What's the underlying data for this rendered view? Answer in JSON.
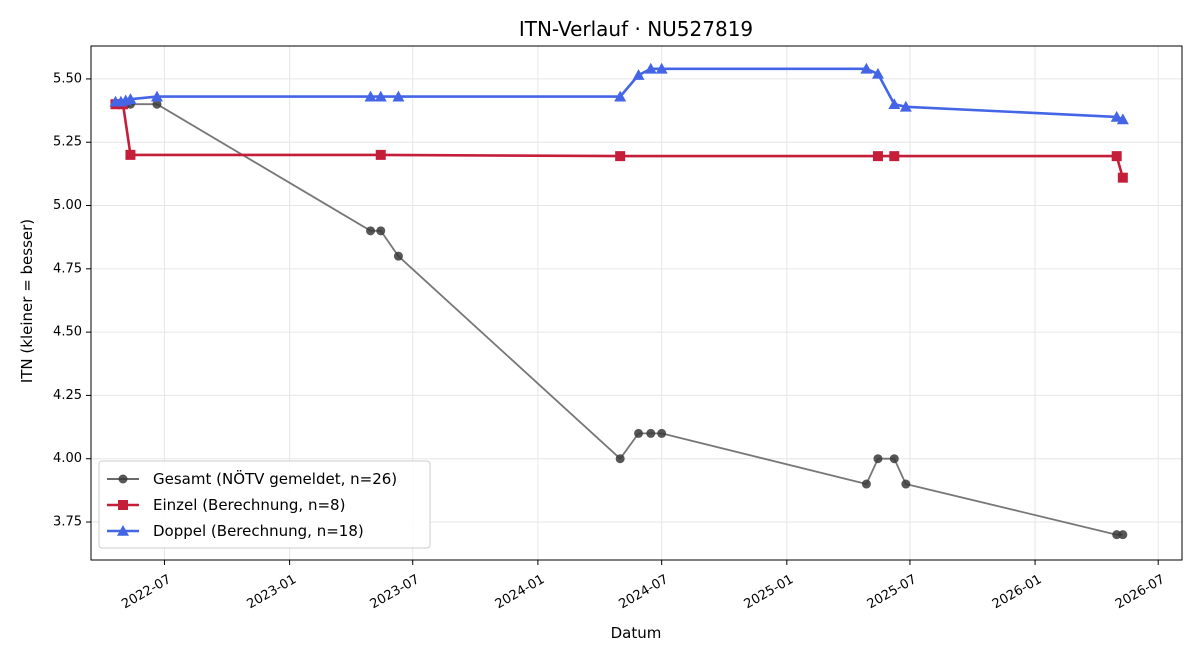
{
  "chart_data": {
    "type": "line",
    "title": "ITN-Verlauf · NU527819",
    "xlabel": "Datum",
    "ylabel": "ITN  (kleiner = besser)",
    "x_axis_type": "date",
    "xlim": [
      "2022-03-15",
      "2026-08-05"
    ],
    "ylim": [
      3.6,
      5.63
    ],
    "x_ticks": [
      "2022-07-01",
      "2023-01-01",
      "2023-07-01",
      "2024-01-01",
      "2024-07-01",
      "2025-01-01",
      "2025-07-01",
      "2026-01-01",
      "2026-07-01"
    ],
    "x_tick_labels": [
      "2022-07",
      "2023-01",
      "2023-07",
      "2024-01",
      "2024-07",
      "2025-01",
      "2025-07",
      "2026-01",
      "2026-07"
    ],
    "y_ticks": [
      3.75,
      4.0,
      4.25,
      4.5,
      4.75,
      5.0,
      5.25,
      5.5
    ],
    "y_tick_labels": [
      "3.75",
      "4.00",
      "4.25",
      "4.50",
      "4.75",
      "5.00",
      "5.25",
      "5.50"
    ],
    "grid": true,
    "legend_position": "lower-left",
    "series": [
      {
        "name": "Gesamt (NÖTV gemeldet, n=26)",
        "color": "#555555",
        "marker": "circle",
        "points": [
          {
            "x": "2022-04-20",
            "y": 5.4
          },
          {
            "x": "2022-04-25",
            "y": 5.4
          },
          {
            "x": "2022-04-30",
            "y": 5.4
          },
          {
            "x": "2022-05-05",
            "y": 5.4
          },
          {
            "x": "2022-05-12",
            "y": 5.4
          },
          {
            "x": "2022-06-20",
            "y": 5.4
          },
          {
            "x": "2023-04-30",
            "y": 4.9
          },
          {
            "x": "2023-05-15",
            "y": 4.9
          },
          {
            "x": "2023-06-10",
            "y": 4.8
          },
          {
            "x": "2024-05-01",
            "y": 4.0
          },
          {
            "x": "2024-05-28",
            "y": 4.1
          },
          {
            "x": "2024-06-15",
            "y": 4.1
          },
          {
            "x": "2024-07-01",
            "y": 4.1
          },
          {
            "x": "2025-04-28",
            "y": 3.9
          },
          {
            "x": "2025-05-15",
            "y": 4.0
          },
          {
            "x": "2025-06-08",
            "y": 4.0
          },
          {
            "x": "2025-06-25",
            "y": 3.9
          },
          {
            "x": "2026-05-01",
            "y": 3.7
          },
          {
            "x": "2026-05-10",
            "y": 3.7
          }
        ]
      },
      {
        "name": "Einzel (Berechnung, n=8)",
        "color": "#c41e3a",
        "marker": "square",
        "points": [
          {
            "x": "2022-04-20",
            "y": 5.4
          },
          {
            "x": "2022-05-01",
            "y": 5.4
          },
          {
            "x": "2022-05-12",
            "y": 5.2
          },
          {
            "x": "2023-05-15",
            "y": 5.2
          },
          {
            "x": "2024-05-01",
            "y": 5.195
          },
          {
            "x": "2025-05-15",
            "y": 5.195
          },
          {
            "x": "2025-06-08",
            "y": 5.195
          },
          {
            "x": "2026-05-01",
            "y": 5.195
          },
          {
            "x": "2026-05-10",
            "y": 5.11
          }
        ]
      },
      {
        "name": "Doppel (Berechnung, n=18)",
        "color": "#4466e6",
        "marker": "triangle",
        "points": [
          {
            "x": "2022-04-20",
            "y": 5.41
          },
          {
            "x": "2022-04-28",
            "y": 5.41
          },
          {
            "x": "2022-05-05",
            "y": 5.415
          },
          {
            "x": "2022-05-12",
            "y": 5.42
          },
          {
            "x": "2022-06-20",
            "y": 5.43
          },
          {
            "x": "2023-04-30",
            "y": 5.43
          },
          {
            "x": "2023-05-15",
            "y": 5.43
          },
          {
            "x": "2023-06-10",
            "y": 5.43
          },
          {
            "x": "2024-05-01",
            "y": 5.43
          },
          {
            "x": "2024-05-28",
            "y": 5.515
          },
          {
            "x": "2024-06-15",
            "y": 5.54
          },
          {
            "x": "2024-07-01",
            "y": 5.54
          },
          {
            "x": "2025-04-28",
            "y": 5.54
          },
          {
            "x": "2025-05-15",
            "y": 5.52
          },
          {
            "x": "2025-06-08",
            "y": 5.4
          },
          {
            "x": "2025-06-25",
            "y": 5.39
          },
          {
            "x": "2026-05-01",
            "y": 5.35
          },
          {
            "x": "2026-05-10",
            "y": 5.34
          }
        ]
      }
    ]
  }
}
